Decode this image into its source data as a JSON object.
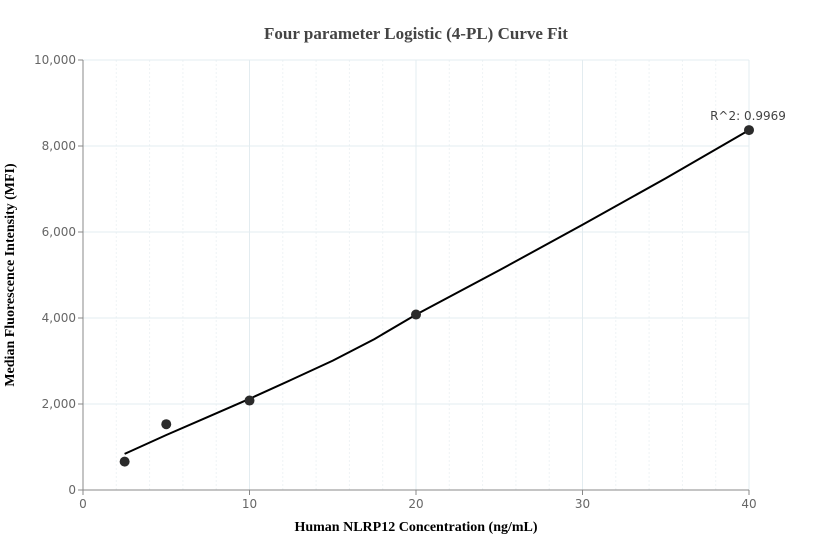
{
  "chart_data": {
    "type": "scatter",
    "title": "Four parameter Logistic (4-PL) Curve Fit",
    "xlabel": "Human NLRP12 Concentration (ng/mL)",
    "ylabel": "Median Fluorescence Intensity (MFI)",
    "xlim": [
      0,
      40
    ],
    "ylim": [
      0,
      10000
    ],
    "x_ticks": [
      0,
      10,
      20,
      30,
      40
    ],
    "x_tick_labels": [
      "0",
      "10",
      "20",
      "30",
      "40"
    ],
    "y_ticks": [
      0,
      2000,
      4000,
      6000,
      8000,
      10000
    ],
    "y_tick_labels": [
      "0",
      "2,000",
      "4,000",
      "6,000",
      "8,000",
      "10,000"
    ],
    "grid": true,
    "points": [
      {
        "x": 2.5,
        "y": 660
      },
      {
        "x": 5,
        "y": 1530
      },
      {
        "x": 10,
        "y": 2080
      },
      {
        "x": 20,
        "y": 4080
      },
      {
        "x": 40,
        "y": 8370
      }
    ],
    "fit_curve": [
      {
        "x": 2.5,
        "y": 840
      },
      {
        "x": 5,
        "y": 1280
      },
      {
        "x": 7.5,
        "y": 1700
      },
      {
        "x": 10,
        "y": 2120
      },
      {
        "x": 12.5,
        "y": 2560
      },
      {
        "x": 15,
        "y": 3010
      },
      {
        "x": 17.5,
        "y": 3510
      },
      {
        "x": 20,
        "y": 4080
      },
      {
        "x": 25,
        "y": 5110
      },
      {
        "x": 30,
        "y": 6170
      },
      {
        "x": 35,
        "y": 7250
      },
      {
        "x": 40,
        "y": 8370
      }
    ],
    "annotation": "R^2: 0.9969",
    "colors": {
      "points": "#2b2b2b",
      "curve": "#000000",
      "grid": "#e3ecf0",
      "minor_grid": "#eef3f5",
      "axis": "#888888"
    }
  }
}
